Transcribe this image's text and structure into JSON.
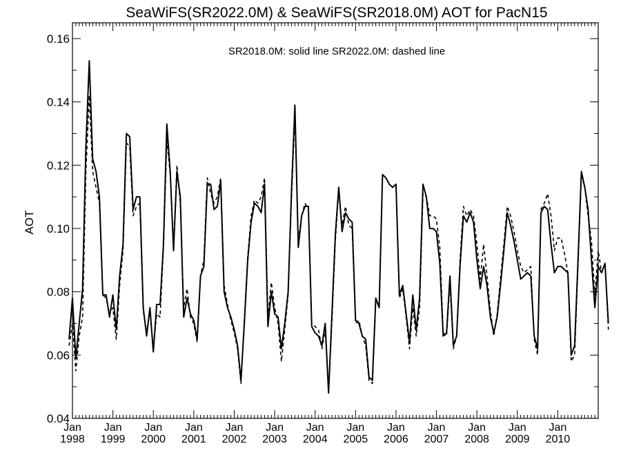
{
  "chart_data": {
    "type": "line",
    "title": "SeaWiFS(SR2022.0M) & SeaWiFS(SR2018.0M)  AOT for PacN15",
    "annotation": "SR2018.0M: solid line   SR2022.0M: dashed line",
    "ylabel": "AOT",
    "xlabel": "",
    "ylim": [
      0.04,
      0.165
    ],
    "xlim": [
      "1998-01",
      "2011-01"
    ],
    "y_ticks": [
      "0.04",
      "0.06",
      "0.08",
      "0.10",
      "0.12",
      "0.14",
      "0.16"
    ],
    "x_ticks": [
      {
        "month": "Jan",
        "year": "1998"
      },
      {
        "month": "Jan",
        "year": "1999"
      },
      {
        "month": "Jan",
        "year": "2000"
      },
      {
        "month": "Jan",
        "year": "2001"
      },
      {
        "month": "Jan",
        "year": "2002"
      },
      {
        "month": "Jan",
        "year": "2003"
      },
      {
        "month": "Jan",
        "year": "2004"
      },
      {
        "month": "Jan",
        "year": "2005"
      },
      {
        "month": "Jan",
        "year": "2006"
      },
      {
        "month": "Jan",
        "year": "2007"
      },
      {
        "month": "Jan",
        "year": "2008"
      },
      {
        "month": "Jan",
        "year": "2009"
      },
      {
        "month": "Jan",
        "year": "2010"
      }
    ],
    "x_start": "1997-12",
    "series": [
      {
        "name": "SR2018.0M",
        "style": "solid",
        "values": [
          0.065,
          0.078,
          0.059,
          0.07,
          0.081,
          0.126,
          0.153,
          0.122,
          0.118,
          0.11,
          0.079,
          0.079,
          0.072,
          0.079,
          0.068,
          0.085,
          0.095,
          0.13,
          0.129,
          0.106,
          0.11,
          0.11,
          0.075,
          0.066,
          0.075,
          0.061,
          0.076,
          0.076,
          0.095,
          0.133,
          0.118,
          0.093,
          0.118,
          0.11,
          0.072,
          0.078,
          0.073,
          0.071,
          0.065,
          0.085,
          0.088,
          0.114,
          0.114,
          0.106,
          0.107,
          0.115,
          0.08,
          0.075,
          0.072,
          0.068,
          0.063,
          0.052,
          0.07,
          0.09,
          0.102,
          0.108,
          0.107,
          0.105,
          0.114,
          0.069,
          0.08,
          0.073,
          0.072,
          0.062,
          0.07,
          0.08,
          0.112,
          0.139,
          0.094,
          0.104,
          0.107,
          0.107,
          0.069,
          0.067,
          0.066,
          0.063,
          0.07,
          0.048,
          0.073,
          0.098,
          0.113,
          0.099,
          0.105,
          0.103,
          0.102,
          0.071,
          0.07,
          0.066,
          0.065,
          0.053,
          0.052,
          0.078,
          0.075,
          0.117,
          0.116,
          0.114,
          0.113,
          0.114,
          0.079,
          0.082,
          0.073,
          0.064,
          0.079,
          0.068,
          0.078,
          0.114,
          0.11,
          0.1,
          0.1,
          0.099,
          0.089,
          0.066,
          0.067,
          0.085,
          0.063,
          0.066,
          0.088,
          0.104,
          0.102,
          0.105,
          0.102,
          0.09,
          0.081,
          0.088,
          0.082,
          0.072,
          0.067,
          0.072,
          0.082,
          0.093,
          0.105,
          0.101,
          0.096,
          0.09,
          0.084,
          0.085,
          0.086,
          0.085,
          0.066,
          0.062,
          0.105,
          0.107,
          0.106,
          0.095,
          0.086,
          0.088,
          0.088,
          0.087,
          0.086,
          0.06,
          0.063,
          0.09,
          0.118,
          0.113,
          0.106,
          0.09,
          0.075,
          0.088,
          0.086,
          0.089,
          0.07
        ]
      },
      {
        "name": "SR2022.0M",
        "style": "dashed",
        "values": [
          0.063,
          0.07,
          0.055,
          0.066,
          0.072,
          0.118,
          0.142,
          0.118,
          0.113,
          0.108,
          0.079,
          0.078,
          0.073,
          0.075,
          0.065,
          0.082,
          0.093,
          0.127,
          0.126,
          0.104,
          0.107,
          0.108,
          0.074,
          0.067,
          0.074,
          0.062,
          0.073,
          0.072,
          0.094,
          0.128,
          0.117,
          0.094,
          0.12,
          0.108,
          0.075,
          0.081,
          0.072,
          0.07,
          0.064,
          0.085,
          0.09,
          0.116,
          0.111,
          0.108,
          0.11,
          0.116,
          0.082,
          0.076,
          0.071,
          0.067,
          0.062,
          0.051,
          0.071,
          0.091,
          0.104,
          0.109,
          0.108,
          0.11,
          0.116,
          0.072,
          0.083,
          0.075,
          0.07,
          0.058,
          0.068,
          0.079,
          0.11,
          0.136,
          0.096,
          0.104,
          0.108,
          0.106,
          0.07,
          0.069,
          0.068,
          0.062,
          0.068,
          0.048,
          0.071,
          0.096,
          0.112,
          0.101,
          0.107,
          0.101,
          0.1,
          0.07,
          0.071,
          0.066,
          0.063,
          0.052,
          0.051,
          0.077,
          0.076,
          0.117,
          0.116,
          0.114,
          0.113,
          0.114,
          0.078,
          0.081,
          0.072,
          0.062,
          0.075,
          0.066,
          0.075,
          0.111,
          0.11,
          0.104,
          0.104,
          0.103,
          0.094,
          0.067,
          0.066,
          0.083,
          0.062,
          0.066,
          0.09,
          0.107,
          0.104,
          0.106,
          0.104,
          0.095,
          0.084,
          0.095,
          0.085,
          0.074,
          0.066,
          0.073,
          0.084,
          0.095,
          0.107,
          0.104,
          0.099,
          0.093,
          0.088,
          0.086,
          0.087,
          0.088,
          0.065,
          0.06,
          0.106,
          0.108,
          0.111,
          0.104,
          0.093,
          0.097,
          0.097,
          0.092,
          0.086,
          0.058,
          0.06,
          0.088,
          0.117,
          0.113,
          0.104,
          0.096,
          0.079,
          0.093,
          0.086,
          0.089,
          0.068
        ]
      }
    ]
  }
}
